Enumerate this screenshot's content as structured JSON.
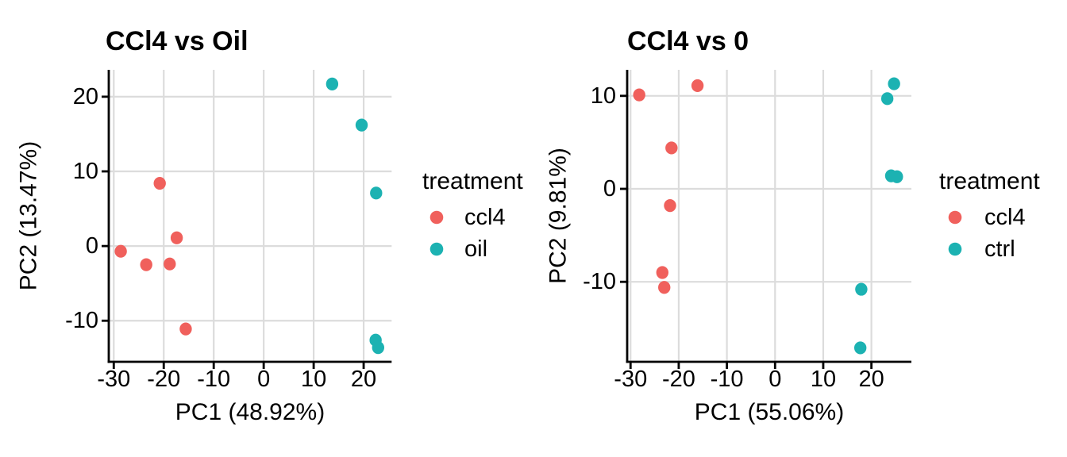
{
  "figure": {
    "background": "#FFFFFF",
    "description_left_title": "CCl4 vs Oil",
    "description_right_title": "CCl4 vs 0"
  },
  "chart_data": [
    {
      "type": "scatter",
      "title": "CCl4 vs Oil",
      "xlabel": "PC1 (48.92%)",
      "ylabel": "PC2 (13.47%)",
      "legend_title": "treatment",
      "legend_position": "right",
      "grid": true,
      "xlim": [
        -31.0,
        25.6
      ],
      "ylim": [
        -15.5,
        23.6
      ],
      "x_ticks": [
        -30,
        -20,
        -10,
        0,
        10,
        20
      ],
      "y_ticks": [
        20,
        10,
        0,
        -10
      ],
      "series": [
        {
          "name": "ccl4",
          "color": "#F0605C",
          "points": [
            [
              -20.8,
              8.4
            ],
            [
              -28.6,
              -0.7
            ],
            [
              -23.5,
              -2.5
            ],
            [
              -18.8,
              -2.4
            ],
            [
              -17.4,
              1.1
            ],
            [
              -15.6,
              -11.1
            ]
          ]
        },
        {
          "name": "oil",
          "color": "#1CB2B2",
          "points": [
            [
              13.7,
              21.7
            ],
            [
              19.6,
              16.2
            ],
            [
              22.5,
              7.1
            ],
            [
              22.4,
              -12.6
            ],
            [
              22.9,
              -13.6
            ]
          ]
        }
      ]
    },
    {
      "type": "scatter",
      "title": "CCl4 vs 0",
      "xlabel": "PC1 (55.06%)",
      "ylabel": "PC2 (9.81%)",
      "legend_title": "treatment",
      "legend_position": "right",
      "grid": true,
      "xlim": [
        -30.7,
        28.3
      ],
      "ylim": [
        -18.6,
        12.8
      ],
      "x_ticks": [
        -30,
        -20,
        -10,
        0,
        10,
        20
      ],
      "y_ticks": [
        10,
        0,
        -10
      ],
      "series": [
        {
          "name": "ccl4",
          "color": "#F0605C",
          "points": [
            [
              -28.2,
              10.1
            ],
            [
              -16.1,
              11.1
            ],
            [
              -21.5,
              4.4
            ],
            [
              -21.8,
              -1.8
            ],
            [
              -23.4,
              -9.0
            ],
            [
              -23.0,
              -10.6
            ]
          ]
        },
        {
          "name": "ctrl",
          "color": "#1CB2B2",
          "points": [
            [
              24.7,
              11.3
            ],
            [
              23.3,
              9.7
            ],
            [
              24.1,
              1.4
            ],
            [
              25.3,
              1.3
            ],
            [
              17.9,
              -10.8
            ],
            [
              17.7,
              -17.1
            ]
          ]
        }
      ]
    }
  ]
}
